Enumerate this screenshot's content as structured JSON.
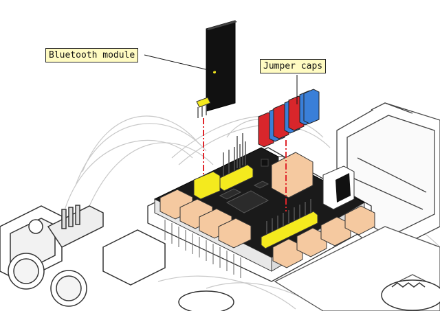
{
  "labels": {
    "bluetooth_module": "Bluetooth module",
    "jumper_caps": "Jumper caps"
  },
  "colors": {
    "pcb": "#1a1a1a",
    "header_yellow": "#f4ea1e",
    "connector_tan": "#f5c9a0",
    "jumper_red": "#d8262b",
    "jumper_blue": "#3a7fd8",
    "guide_line": "#e0262b",
    "callout_bg": "#fffbc2"
  }
}
